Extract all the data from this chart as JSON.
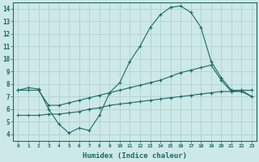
{
  "xlabel": "Humidex (Indice chaleur)",
  "ylabel": "",
  "xlim": [
    -0.5,
    23.5
  ],
  "ylim": [
    3.5,
    14.5
  ],
  "xticks": [
    0,
    1,
    2,
    3,
    4,
    5,
    6,
    7,
    8,
    9,
    10,
    11,
    12,
    13,
    14,
    15,
    16,
    17,
    18,
    19,
    20,
    21,
    22,
    23
  ],
  "yticks": [
    4,
    5,
    6,
    7,
    8,
    9,
    10,
    11,
    12,
    13,
    14
  ],
  "bg_color": "#cde8e8",
  "line_color": "#1a6b60",
  "grid_color": "#aacccc",
  "curve1_x": [
    0,
    1,
    2,
    3,
    4,
    5,
    6,
    7,
    8,
    9,
    10,
    11,
    12,
    13,
    14,
    15,
    16,
    17,
    18,
    19,
    20,
    21,
    22,
    23
  ],
  "curve1_y": [
    7.5,
    7.7,
    7.6,
    6.0,
    4.8,
    4.1,
    4.5,
    4.3,
    5.5,
    7.3,
    8.1,
    9.8,
    11.0,
    12.5,
    13.5,
    14.1,
    14.2,
    13.7,
    12.5,
    9.8,
    8.5,
    7.5,
    7.5,
    7.5
  ],
  "curve2_x": [
    0,
    1,
    2,
    3,
    4,
    5,
    6,
    7,
    8,
    9,
    10,
    11,
    12,
    13,
    14,
    15,
    16,
    17,
    18,
    19,
    20,
    21,
    22,
    23
  ],
  "curve2_y": [
    7.5,
    7.5,
    7.5,
    6.3,
    6.3,
    6.5,
    6.7,
    6.9,
    7.1,
    7.3,
    7.5,
    7.7,
    7.9,
    8.1,
    8.3,
    8.6,
    8.9,
    9.1,
    9.3,
    9.5,
    8.3,
    7.4,
    7.4,
    7.0
  ],
  "curve3_x": [
    0,
    1,
    2,
    3,
    4,
    5,
    6,
    7,
    8,
    9,
    10,
    11,
    12,
    13,
    14,
    15,
    16,
    17,
    18,
    19,
    20,
    21,
    22,
    23
  ],
  "curve3_y": [
    5.5,
    5.5,
    5.5,
    5.6,
    5.6,
    5.7,
    5.8,
    6.0,
    6.1,
    6.3,
    6.4,
    6.5,
    6.6,
    6.7,
    6.8,
    6.9,
    7.0,
    7.1,
    7.2,
    7.3,
    7.4,
    7.4,
    7.5,
    7.0
  ]
}
